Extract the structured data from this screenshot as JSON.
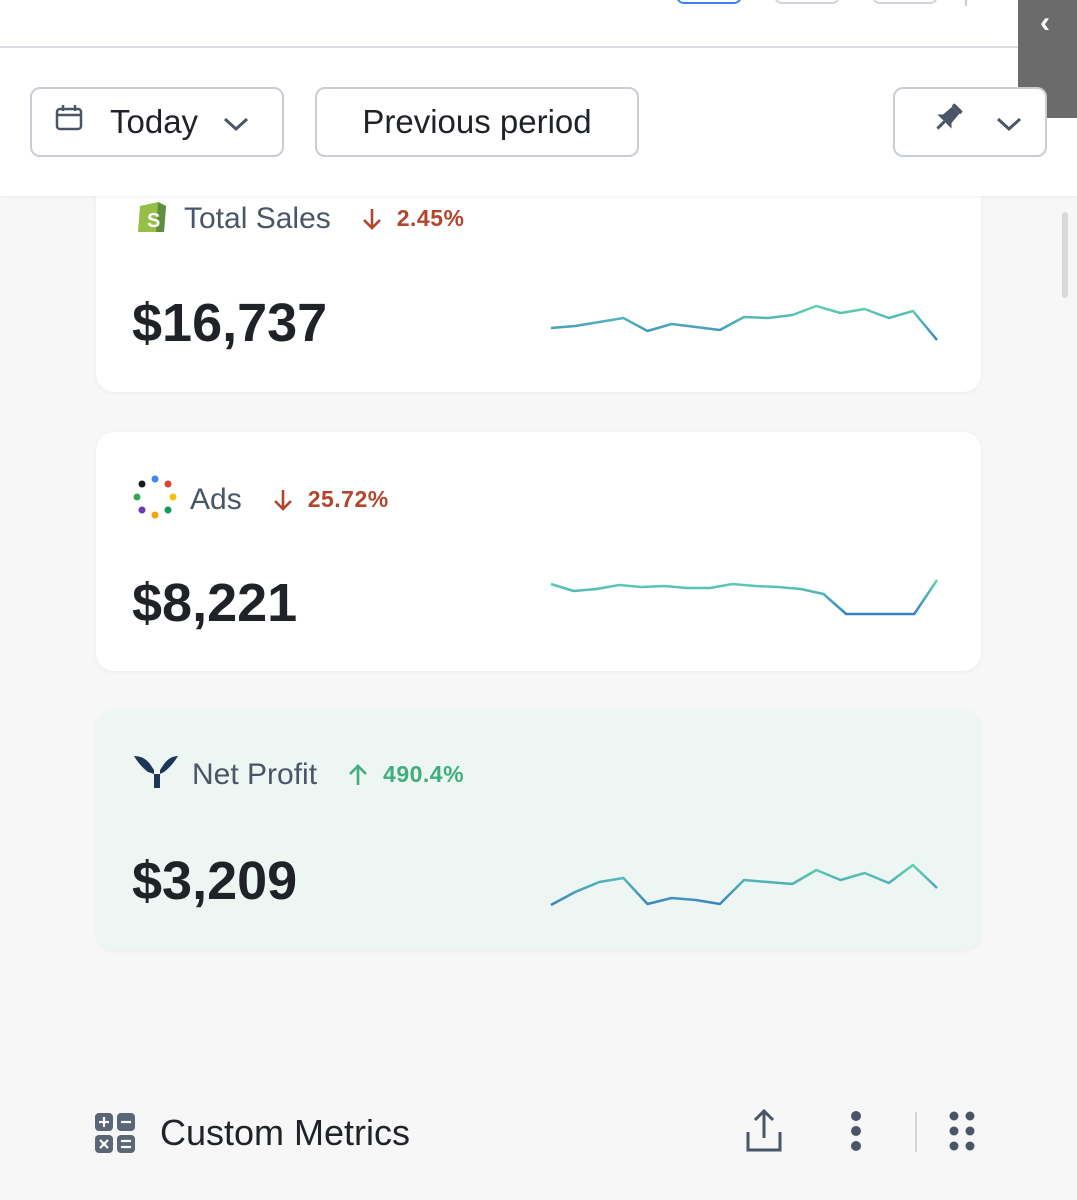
{
  "toolbar": {
    "date_range_label": "Today",
    "compare_label": "Previous period"
  },
  "cards": [
    {
      "title": "Total Sales",
      "delta_direction": "down",
      "delta": "2.45%",
      "value": "$16,737",
      "icon": "shopify-icon",
      "sparkline": [
        50,
        48,
        44,
        40,
        53,
        46,
        49,
        52,
        39,
        40,
        37,
        28,
        35,
        31,
        40,
        33,
        62
      ]
    },
    {
      "title": "Ads",
      "delta_direction": "down",
      "delta": "25.72%",
      "value": "$8,221",
      "icon": "ads-dots-icon",
      "sparkline": [
        20,
        27,
        25,
        21,
        23,
        22,
        24,
        24,
        20,
        22,
        23,
        25,
        30,
        50,
        50,
        50,
        50,
        16
      ]
    },
    {
      "title": "Net Profit",
      "delta_direction": "up",
      "delta": "490.4%",
      "value": "$3,209",
      "icon": "triple-whale-icon",
      "sparkline": [
        65,
        52,
        42,
        38,
        64,
        58,
        60,
        64,
        40,
        42,
        44,
        30,
        40,
        33,
        43,
        25,
        48
      ]
    }
  ],
  "footer": {
    "title": "Custom Metrics",
    "icons": [
      "calculator-icon",
      "share-icon",
      "more-vertical-icon",
      "drag-grid-icon"
    ]
  },
  "colors": {
    "down": "#b3452d",
    "up": "#3fae7e",
    "spark_start": "#3b82c4",
    "spark_end": "#5fd4b0",
    "profit_card_bg": "#edf6f2"
  }
}
